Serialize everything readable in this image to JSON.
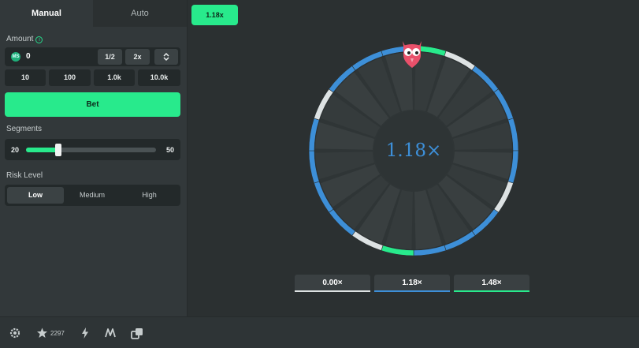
{
  "mode_tabs": [
    {
      "label": "Manual",
      "active": true
    },
    {
      "label": "Auto",
      "active": false
    }
  ],
  "amount": {
    "label": "Amount",
    "info_icon": "info-icon",
    "currency_icon": "coin-icon",
    "value": "0",
    "half_label": "1/2",
    "double_label": "2x",
    "presets": [
      "10",
      "100",
      "1.0k",
      "10.0k"
    ]
  },
  "bet_button": "Bet",
  "segments": {
    "label": "Segments",
    "min": "20",
    "max": "50",
    "value": 20
  },
  "risk": {
    "label": "Risk Level",
    "options": [
      "Low",
      "Medium",
      "High"
    ],
    "selected": "Low"
  },
  "last_multiplier": "1.18x",
  "wheel": {
    "center_text": "1.18×",
    "segment_count": 20,
    "segments": [
      "green",
      "white",
      "blue",
      "blue",
      "blue",
      "blue",
      "white",
      "blue",
      "blue",
      "blue",
      "green",
      "white",
      "blue",
      "blue",
      "blue",
      "blue",
      "white",
      "blue",
      "blue",
      "blue"
    ],
    "colors": {
      "green": "#28ea8c",
      "blue": "#3d8fd8",
      "white": "#dde2e3"
    }
  },
  "payouts": [
    {
      "label": "0.00×",
      "color": "#dde2e3"
    },
    {
      "label": "1.18×",
      "color": "#3d8fd8"
    },
    {
      "label": "1.48×",
      "color": "#28ea8c"
    }
  ],
  "bottom_bar": {
    "icons": [
      "settings-icon",
      "star-icon",
      "lightning-icon",
      "fairness-icon",
      "popout-icon"
    ],
    "favorites_count": "2297"
  }
}
